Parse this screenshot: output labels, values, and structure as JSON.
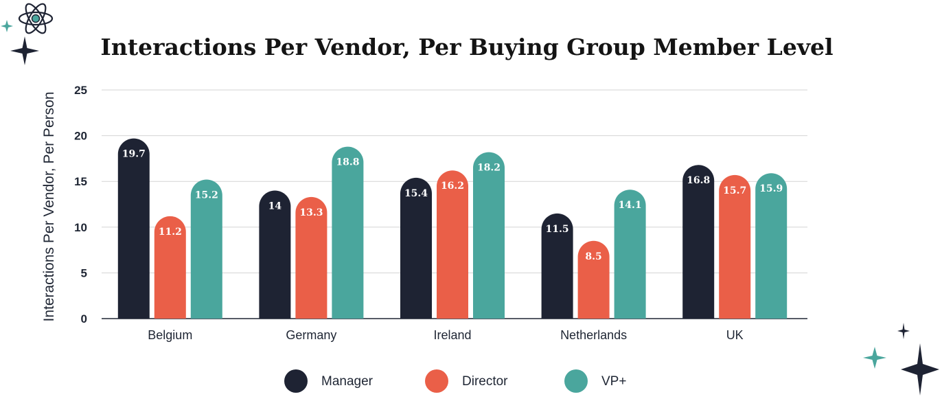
{
  "chart_data": {
    "type": "bar",
    "title": "Interactions Per Vendor, Per Buying Group Member Level",
    "xlabel": "",
    "ylabel": "Interactions Per Vendor, Per Person",
    "ylim": [
      0,
      25
    ],
    "yticks": [
      0,
      5,
      10,
      15,
      20,
      25
    ],
    "grid": true,
    "legend_position": "bottom",
    "categories": [
      "Belgium",
      "Germany",
      "Ireland",
      "Netherlands",
      "UK"
    ],
    "series": [
      {
        "name": "Manager",
        "color": "#1e2333",
        "values": [
          19.7,
          14,
          15.4,
          11.5,
          16.8
        ],
        "labels": [
          "19.7",
          "14",
          "15.4",
          "11.5",
          "16.8"
        ]
      },
      {
        "name": "Director",
        "color": "#ea5f48",
        "values": [
          11.2,
          13.3,
          16.2,
          8.5,
          15.7
        ],
        "labels": [
          "11.2",
          "13.3",
          "16.2",
          "8.5",
          "15.7"
        ]
      },
      {
        "name": "VP+",
        "color": "#4aa69d",
        "values": [
          15.2,
          18.8,
          18.2,
          14.1,
          15.9
        ],
        "labels": [
          "15.2",
          "18.8",
          "18.2",
          "14.1",
          "15.9"
        ]
      }
    ]
  },
  "decorations": {
    "top_left": [
      "atom-icon",
      "sparkle-icon",
      "star-icon"
    ],
    "bottom_right": [
      "sparkle-icon",
      "star-icon"
    ],
    "colors": {
      "teal": "#4aa69d",
      "dark": "#1e2333"
    }
  }
}
